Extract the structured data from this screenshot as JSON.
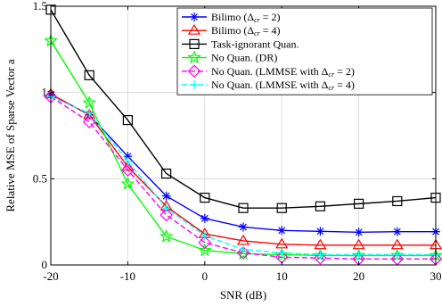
{
  "chart_data": {
    "type": "line",
    "xlabel": "SNR (dB)",
    "ylabel": "Relative MSE of Sparse Vector a",
    "xlim": [
      -20,
      30
    ],
    "ylim": [
      0,
      1.5
    ],
    "xticks": [
      -20,
      -10,
      0,
      10,
      20,
      30
    ],
    "xtick_labels": [
      "-20",
      "-10",
      "0",
      "10",
      "20",
      "30"
    ],
    "yticks": [
      0,
      0.5,
      1,
      1.5
    ],
    "ytick_labels": [
      "0",
      "0.5",
      "1",
      "1.5"
    ],
    "grid": true,
    "legend_position": "top-right",
    "x": [
      -20,
      -15,
      -10,
      -5,
      0,
      5,
      10,
      15,
      20,
      25,
      30
    ],
    "series": [
      {
        "name": "Bilimo (Δcr = 2)",
        "legend": [
          "Bilimo (",
          "Δ",
          "cr",
          " = 2)"
        ],
        "color": "#0000ff",
        "marker": "asterisk",
        "dash": "solid",
        "values": [
          0.99,
          0.87,
          0.63,
          0.4,
          0.27,
          0.22,
          0.2,
          0.195,
          0.19,
          0.193,
          0.193
        ]
      },
      {
        "name": "Bilimo (Δcr = 4)",
        "legend": [
          "Bilimo (",
          "Δ",
          "cr",
          " = 4)"
        ],
        "color": "#ff0000",
        "marker": "triangle",
        "dash": "solid",
        "values": [
          0.99,
          0.87,
          0.57,
          0.34,
          0.18,
          0.14,
          0.12,
          0.115,
          0.115,
          0.115,
          0.115
        ]
      },
      {
        "name": "Task-ignorant Quan.",
        "legend": [
          "Task-ignorant Quan.",
          "",
          "",
          ""
        ],
        "color": "#000000",
        "marker": "square",
        "dash": "solid",
        "values": [
          1.48,
          1.1,
          0.84,
          0.53,
          0.39,
          0.33,
          0.33,
          0.34,
          0.355,
          0.37,
          0.39
        ]
      },
      {
        "name": "No Quan. (DR)",
        "legend": [
          "No Quan. (DR)",
          "",
          "",
          ""
        ],
        "color": "#00ff00",
        "marker": "star",
        "dash": "solid",
        "values": [
          1.3,
          0.94,
          0.47,
          0.165,
          0.085,
          0.065,
          0.06,
          0.055,
          0.055,
          0.055,
          0.055
        ]
      },
      {
        "name": "No Quan. (LMMSE with Δcr = 2)",
        "legend": [
          "No Quan. (LMMSE with ",
          "Δ",
          "cr",
          " = 2)"
        ],
        "color": "#ff00ff",
        "marker": "diamond",
        "dash": "dashed",
        "values": [
          0.975,
          0.83,
          0.55,
          0.29,
          0.13,
          0.07,
          0.045,
          0.04,
          0.035,
          0.035,
          0.035
        ]
      },
      {
        "name": "No Quan. (LMMSE with Δcr = 4)",
        "legend": [
          "No Quan. (LMMSE with ",
          "Δ",
          "cr",
          " = 4)"
        ],
        "color": "#00ffff",
        "marker": "plus",
        "dash": "dashed",
        "values": [
          0.975,
          0.88,
          0.6,
          0.33,
          0.17,
          0.09,
          0.07,
          0.06,
          0.06,
          0.06,
          0.06
        ]
      }
    ]
  }
}
